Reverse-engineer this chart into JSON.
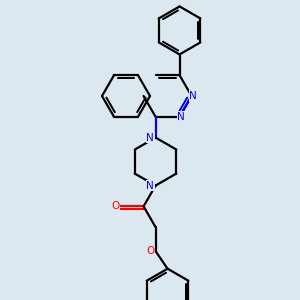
{
  "bg_color": "#dce8f0",
  "bond_color": "#000000",
  "N_color": "#0000ff",
  "O_color": "#ff0000",
  "line_width": 1.6,
  "figsize": [
    3.0,
    3.0
  ],
  "dpi": 100,
  "xlim": [
    0,
    10
  ],
  "ylim": [
    0,
    10
  ]
}
